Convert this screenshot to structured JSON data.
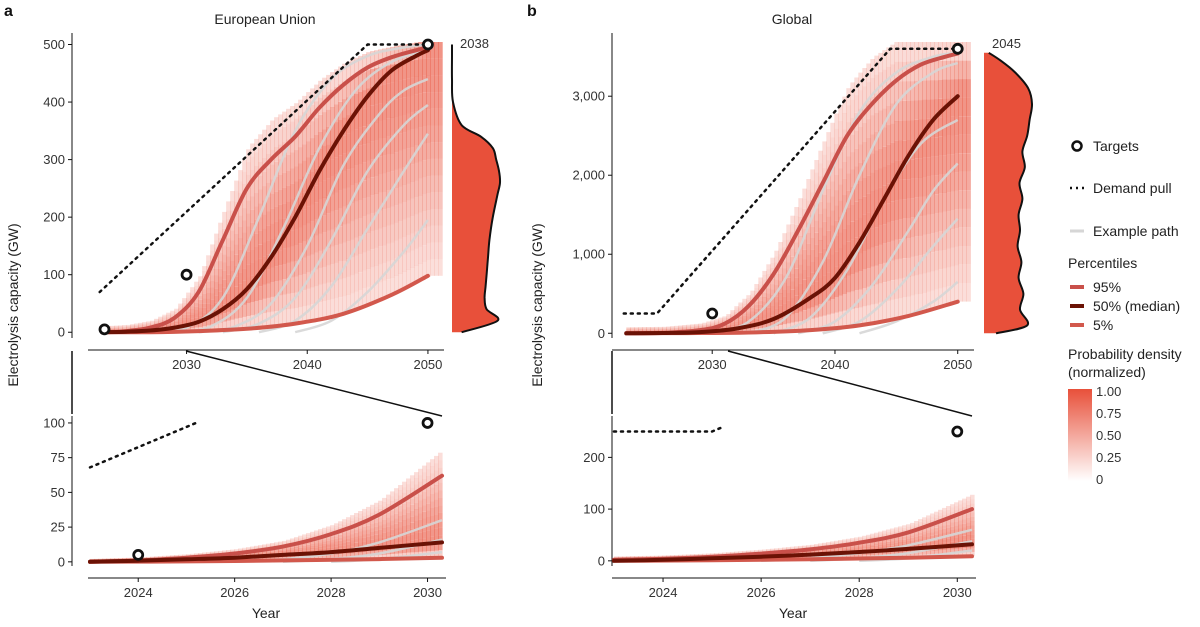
{
  "colors": {
    "density": "#e8503a",
    "p95": "#c9504a",
    "p50": "#6b1205",
    "p5": "#d2584c",
    "example": "#d6d6d6",
    "demand": "#111111",
    "target": "#111111"
  },
  "legend": {
    "targets": "Targets",
    "demand": "Demand pull",
    "example": "Example path",
    "percentiles_title": "Percentiles",
    "p95": "95%",
    "p50": "50% (median)",
    "p5": "5%",
    "density_title_1": "Probability density",
    "density_title_2": "(normalized)",
    "density_ticks": [
      "1.00",
      "0.75",
      "0.50",
      "0.25",
      "0"
    ]
  },
  "chart_data": [
    {
      "id": "eu-main",
      "panel": "a",
      "type": "line",
      "title": "European Union",
      "ylabel": "Electrolysis capacity (GW)",
      "xlabel": "",
      "xlim": [
        2022,
        2051
      ],
      "ylim": [
        -10,
        520
      ],
      "xticks": [
        2030,
        2040,
        2050
      ],
      "xtick_labels": [
        "2030",
        "2040",
        "2050"
      ],
      "yticks": [
        0,
        100,
        200,
        300,
        400,
        500
      ],
      "ytick_labels": [
        "0",
        "100",
        "200",
        "300",
        "400",
        "500"
      ],
      "density_year": "2038",
      "targets": [
        {
          "x": 2023.2,
          "y": 5
        },
        {
          "x": 2030,
          "y": 100
        },
        {
          "x": 2050,
          "y": 500
        }
      ],
      "demand_pull": {
        "x": [
          2022.8,
          2045,
          2050
        ],
        "y": [
          70,
          500,
          500
        ]
      },
      "series": [
        {
          "name": "95%",
          "x": [
            2023,
            2025,
            2027,
            2029,
            2031,
            2033,
            2035,
            2037,
            2039,
            2041,
            2043,
            2045,
            2047,
            2049,
            2050
          ],
          "y": [
            0,
            2,
            8,
            25,
            70,
            160,
            250,
            300,
            340,
            390,
            430,
            460,
            478,
            490,
            495
          ]
        },
        {
          "name": "50% (median)",
          "x": [
            2023,
            2025,
            2027,
            2029,
            2031,
            2033,
            2035,
            2037,
            2039,
            2041,
            2043,
            2045,
            2047,
            2049,
            2050
          ],
          "y": [
            0,
            1,
            3,
            8,
            18,
            40,
            75,
            130,
            200,
            280,
            350,
            410,
            455,
            480,
            490
          ]
        },
        {
          "name": "5%",
          "x": [
            2023,
            2027,
            2031,
            2035,
            2039,
            2043,
            2047,
            2050
          ],
          "y": [
            0,
            0,
            2,
            6,
            15,
            32,
            65,
            98
          ]
        }
      ],
      "examples": [
        {
          "x": [
            2027,
            2030,
            2033,
            2036,
            2039,
            2042,
            2045,
            2048,
            2050
          ],
          "y": [
            0,
            8,
            60,
            200,
            350,
            440,
            480,
            495,
            500
          ]
        },
        {
          "x": [
            2029,
            2032,
            2035,
            2038,
            2041,
            2044,
            2047,
            2050
          ],
          "y": [
            0,
            10,
            60,
            180,
            320,
            420,
            470,
            490
          ]
        },
        {
          "x": [
            2031,
            2034,
            2037,
            2040,
            2043,
            2046,
            2048,
            2050
          ],
          "y": [
            0,
            10,
            50,
            150,
            290,
            380,
            420,
            440
          ]
        },
        {
          "x": [
            2033,
            2036,
            2039,
            2042,
            2045,
            2048,
            2050
          ],
          "y": [
            0,
            15,
            60,
            160,
            280,
            360,
            395
          ]
        },
        {
          "x": [
            2036,
            2039,
            2042,
            2045,
            2048,
            2050
          ],
          "y": [
            0,
            20,
            80,
            180,
            280,
            345
          ]
        },
        {
          "x": [
            2039,
            2042,
            2045,
            2048,
            2050
          ],
          "y": [
            0,
            20,
            70,
            140,
            195
          ]
        }
      ],
      "density_profile": {
        "y": [
          0,
          20,
          40,
          60,
          80,
          100,
          130,
          160,
          200,
          240,
          260,
          280,
          300,
          320,
          340,
          360,
          400,
          440,
          480,
          500
        ],
        "d": [
          0.2,
          0.95,
          0.72,
          0.68,
          0.7,
          0.72,
          0.75,
          0.78,
          0.85,
          0.95,
          1.0,
          0.98,
          0.92,
          0.85,
          0.6,
          0.2,
          0.02,
          0.0,
          0.0,
          0.0
        ]
      }
    },
    {
      "id": "eu-zoom",
      "panel": "a",
      "type": "line",
      "title": "",
      "ylabel": "",
      "xlabel": "Year",
      "xlim": [
        2023,
        2030.3
      ],
      "ylim": [
        -3,
        105
      ],
      "xticks": [
        2024,
        2026,
        2028,
        2030
      ],
      "xtick_labels": [
        "2024",
        "2026",
        "2028",
        "2030"
      ],
      "yticks": [
        0,
        25,
        50,
        75,
        100
      ],
      "ytick_labels": [
        "0",
        "25",
        "50",
        "75",
        "100"
      ],
      "targets": [
        {
          "x": 2024,
          "y": 5
        },
        {
          "x": 2030,
          "y": 100
        }
      ],
      "demand_pull": {
        "x": [
          2023,
          2025.2
        ],
        "y": [
          68,
          100
        ]
      },
      "series": [
        {
          "name": "95%",
          "x": [
            2023,
            2024,
            2025,
            2026,
            2027,
            2028,
            2029,
            2030.3
          ],
          "y": [
            0,
            1,
            3,
            6,
            11,
            20,
            34,
            62
          ]
        },
        {
          "name": "50% (median)",
          "x": [
            2023,
            2024,
            2025,
            2026,
            2027,
            2028,
            2029,
            2030.3
          ],
          "y": [
            0,
            0.8,
            1.8,
            3,
            5,
            7,
            10,
            14
          ]
        },
        {
          "name": "5%",
          "x": [
            2023,
            2025,
            2027,
            2029,
            2030.3
          ],
          "y": [
            0,
            0.3,
            1,
            2,
            3
          ]
        }
      ],
      "examples": [
        {
          "x": [
            2026,
            2027,
            2028,
            2029,
            2030.3
          ],
          "y": [
            0,
            2,
            6,
            14,
            30
          ]
        },
        {
          "x": [
            2027,
            2028,
            2029,
            2030.3
          ],
          "y": [
            0,
            2,
            6,
            16
          ]
        },
        {
          "x": [
            2028,
            2029,
            2030.3
          ],
          "y": [
            0,
            2,
            7
          ]
        }
      ]
    },
    {
      "id": "global-main",
      "panel": "b",
      "type": "line",
      "title": "Global",
      "ylabel": "Electrolysis capacity (GW)",
      "xlabel": "",
      "xlim": [
        2022,
        2051
      ],
      "ylim": [
        -60,
        3800
      ],
      "xticks": [
        2030,
        2040,
        2050
      ],
      "xtick_labels": [
        "2030",
        "2040",
        "2050"
      ],
      "yticks": [
        0,
        1000,
        2000,
        3000
      ],
      "ytick_labels": [
        "0",
        "1,000",
        "2,000",
        "3,000"
      ],
      "density_year": "2045",
      "targets": [
        {
          "x": 2030,
          "y": 250
        },
        {
          "x": 2050,
          "y": 3600
        }
      ],
      "demand_pull": {
        "x": [
          2022.8,
          2025.5,
          2044.5,
          2050
        ],
        "y": [
          250,
          250,
          3600,
          3600
        ]
      },
      "series": [
        {
          "name": "95%",
          "x": [
            2023,
            2026,
            2029,
            2031,
            2033,
            2035,
            2037,
            2039,
            2041,
            2043,
            2045,
            2047,
            2049,
            2050
          ],
          "y": [
            0,
            5,
            40,
            120,
            350,
            750,
            1300,
            1900,
            2500,
            2900,
            3200,
            3400,
            3500,
            3540
          ]
        },
        {
          "name": "50% (median)",
          "x": [
            2023,
            2026,
            2029,
            2032,
            2035,
            2038,
            2040,
            2042,
            2044,
            2046,
            2048,
            2050
          ],
          "y": [
            0,
            3,
            15,
            60,
            180,
            450,
            700,
            1150,
            1700,
            2250,
            2700,
            3000
          ]
        },
        {
          "name": "5%",
          "x": [
            2023,
            2028,
            2033,
            2038,
            2042,
            2046,
            2050
          ],
          "y": [
            0,
            2,
            10,
            40,
            100,
            220,
            400
          ]
        }
      ],
      "examples": [
        {
          "x": [
            2030,
            2033,
            2036,
            2039,
            2042,
            2045,
            2048,
            2050
          ],
          "y": [
            0,
            150,
            700,
            1800,
            2800,
            3300,
            3500,
            3550
          ]
        },
        {
          "x": [
            2033,
            2036,
            2039,
            2042,
            2045,
            2048,
            2050
          ],
          "y": [
            0,
            200,
            900,
            2000,
            2900,
            3300,
            3420
          ]
        },
        {
          "x": [
            2035,
            2038,
            2041,
            2044,
            2047,
            2050
          ],
          "y": [
            0,
            200,
            800,
            1700,
            2400,
            2700
          ]
        },
        {
          "x": [
            2037,
            2040,
            2043,
            2046,
            2048,
            2050
          ],
          "y": [
            0,
            150,
            600,
            1300,
            1800,
            2150
          ]
        },
        {
          "x": [
            2039,
            2042,
            2045,
            2048,
            2050
          ],
          "y": [
            0,
            150,
            550,
            1100,
            1450
          ]
        },
        {
          "x": [
            2042,
            2045,
            2048,
            2050
          ],
          "y": [
            0,
            150,
            400,
            650
          ]
        }
      ],
      "density_profile": {
        "y": [
          0,
          100,
          300,
          500,
          700,
          900,
          1100,
          1300,
          1500,
          1700,
          1900,
          2100,
          2300,
          2500,
          2700,
          2900,
          3100,
          3300,
          3450,
          3550
        ],
        "d": [
          0.25,
          0.9,
          0.75,
          0.82,
          0.72,
          0.78,
          0.7,
          0.75,
          0.72,
          0.8,
          0.74,
          0.85,
          0.8,
          0.9,
          0.95,
          1.0,
          0.92,
          0.65,
          0.35,
          0.1
        ]
      }
    },
    {
      "id": "global-zoom",
      "panel": "b",
      "type": "line",
      "title": "",
      "ylabel": "",
      "xlabel": "Year",
      "xlim": [
        2023,
        2030.3
      ],
      "ylim": [
        -10,
        280
      ],
      "xticks": [
        2024,
        2026,
        2028,
        2030
      ],
      "xtick_labels": [
        "2024",
        "2026",
        "2028",
        "2030"
      ],
      "yticks": [
        0,
        100,
        200
      ],
      "ytick_labels": [
        "0",
        "100",
        "200"
      ],
      "targets": [
        {
          "x": 2030,
          "y": 250
        }
      ],
      "demand_pull": {
        "x": [
          2023,
          2025,
          2025.2
        ],
        "y": [
          250,
          250,
          258
        ]
      },
      "series": [
        {
          "name": "95%",
          "x": [
            2023,
            2024,
            2025,
            2026,
            2027,
            2028,
            2029,
            2030.3
          ],
          "y": [
            2,
            4,
            8,
            14,
            22,
            35,
            55,
            100
          ]
        },
        {
          "name": "50% (median)",
          "x": [
            2023,
            2024,
            2025,
            2026,
            2027,
            2028,
            2029,
            2030.3
          ],
          "y": [
            0,
            2,
            5,
            8,
            12,
            17,
            23,
            32
          ]
        },
        {
          "name": "5%",
          "x": [
            2023,
            2025,
            2027,
            2029,
            2030.3
          ],
          "y": [
            0,
            1,
            3,
            6,
            9
          ]
        }
      ],
      "examples": [
        {
          "x": [
            2026,
            2027,
            2028,
            2029,
            2030.3
          ],
          "y": [
            0,
            5,
            15,
            30,
            60
          ]
        },
        {
          "x": [
            2027,
            2028,
            2029,
            2030.3
          ],
          "y": [
            0,
            5,
            15,
            38
          ]
        },
        {
          "x": [
            2028,
            2029,
            2030.3
          ],
          "y": [
            0,
            5,
            20
          ]
        }
      ]
    }
  ]
}
